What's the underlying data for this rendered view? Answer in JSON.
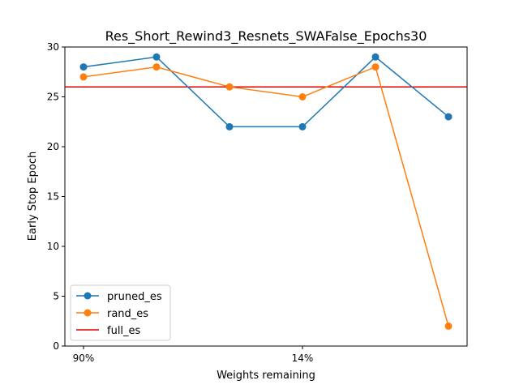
{
  "chart_data": {
    "type": "line",
    "title": "Res_Short_Rewind3_Resnets_SWAFalse_Epochs30",
    "xlabel": "Weights remaining",
    "ylabel": "Early Stop Epoch",
    "x_tick_labels": [
      {
        "index": 0,
        "label": "90%"
      },
      {
        "index": 3,
        "label": "14%"
      }
    ],
    "ylim": [
      0,
      30
    ],
    "y_ticks": [
      0,
      5,
      10,
      15,
      20,
      25,
      30
    ],
    "grid": false,
    "legend_position": "lower-left",
    "series": [
      {
        "name": "pruned_es",
        "color": "#1f77b4",
        "marker": "circle",
        "values": [
          28,
          29,
          22,
          22,
          29,
          23
        ]
      },
      {
        "name": "rand_es",
        "color": "#ff7f0e",
        "marker": "circle",
        "values": [
          27,
          28,
          26,
          25,
          28,
          2
        ]
      }
    ],
    "reference_lines": [
      {
        "name": "full_es",
        "color": "#e00000",
        "y": 26
      }
    ]
  }
}
